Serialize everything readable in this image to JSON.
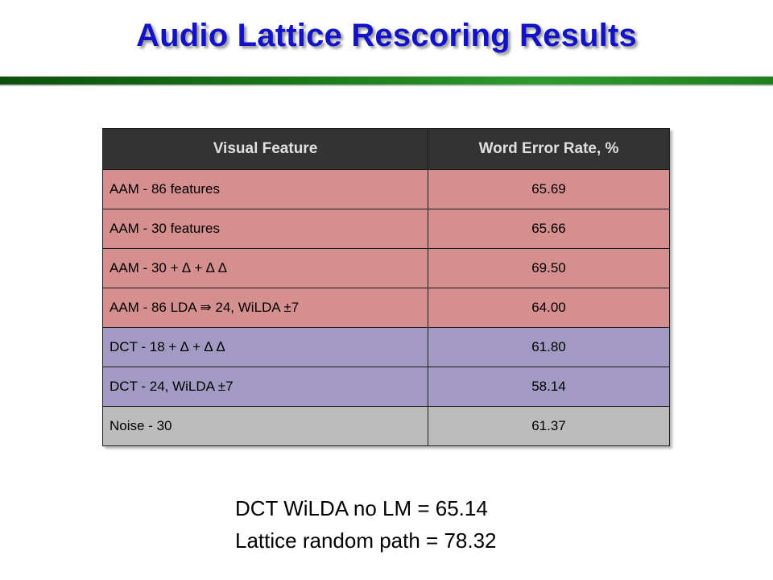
{
  "slide": {
    "title": "Audio Lattice Rescoring Results"
  },
  "table": {
    "headers": [
      "Visual Feature",
      "Word Error Rate, %"
    ],
    "rows": [
      {
        "feature": "AAM - 86 features",
        "wer": "65.69",
        "group": "aam"
      },
      {
        "feature": "AAM - 30 features",
        "wer": "65.66",
        "group": "aam"
      },
      {
        "feature": "AAM - 30 + ∆ + ∆ ∆",
        "wer": "69.50",
        "group": "aam"
      },
      {
        "feature": "AAM - 86 LDA ⇛ 24, WiLDA ±7",
        "wer": "64.00",
        "group": "aam"
      },
      {
        "feature": "DCT - 18 + ∆ + ∆ ∆",
        "wer": "61.80",
        "group": "dct"
      },
      {
        "feature": "DCT - 24, WiLDA ±7",
        "wer": "58.14",
        "group": "dct"
      },
      {
        "feature": "Noise - 30",
        "wer": "61.37",
        "group": "noise"
      }
    ]
  },
  "notes": [
    "DCT WiLDA no LM = 65.14",
    "Lattice random path = 78.32"
  ],
  "colors": {
    "title": "#1212c8",
    "header_bg": "#333333",
    "aam_row": "#d68f8f",
    "dct_row": "#a39ac4",
    "noise_row": "#bcbcbc",
    "rule": "#1a7a1a"
  }
}
